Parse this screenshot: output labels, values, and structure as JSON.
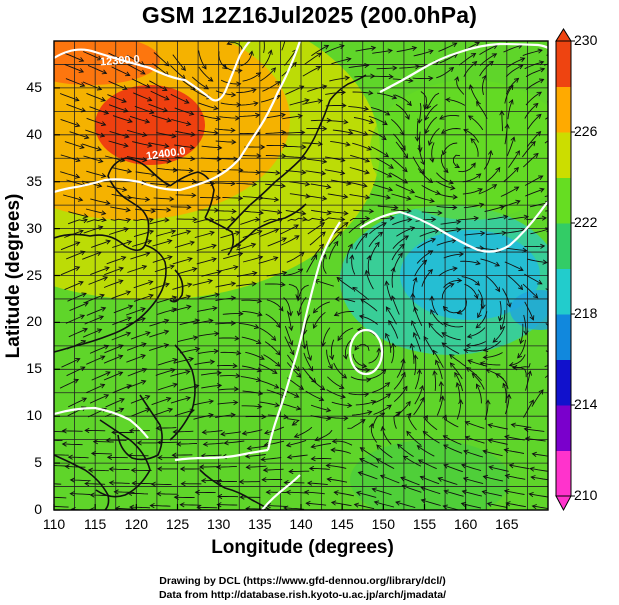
{
  "title": "GSM 12Z16Jul2025 (200.0hPa)",
  "axes": {
    "xlabel": "Longitude (degrees)",
    "ylabel": "Latitude  (degrees)",
    "x_ticks": [
      "110",
      "115",
      "120",
      "125",
      "130",
      "135",
      "140",
      "145",
      "150",
      "155",
      "160",
      "165"
    ],
    "y_ticks": [
      "45",
      "40",
      "35",
      "30",
      "25",
      "20",
      "15",
      "10",
      "5",
      "0"
    ]
  },
  "colorbar": {
    "ticks": [
      "230",
      "226",
      "222",
      "218",
      "214",
      "210"
    ],
    "range": [
      210,
      230
    ],
    "colors": [
      "#ff33cc",
      "#7a00cc",
      "#1111cc",
      "#1188dd",
      "#22cccc",
      "#33cc66",
      "#66dd22",
      "#ccdd00",
      "#ffaa00",
      "#ee4411"
    ]
  },
  "contour_labels": [
    "12300.0",
    "12400.0"
  ],
  "credits": [
    "Drawing by DCL (https://www.gfd-dennou.org/library/dcl/)",
    "Data from http://database.rish.kyoto-u.ac.jp/arch/jmadata/"
  ]
}
